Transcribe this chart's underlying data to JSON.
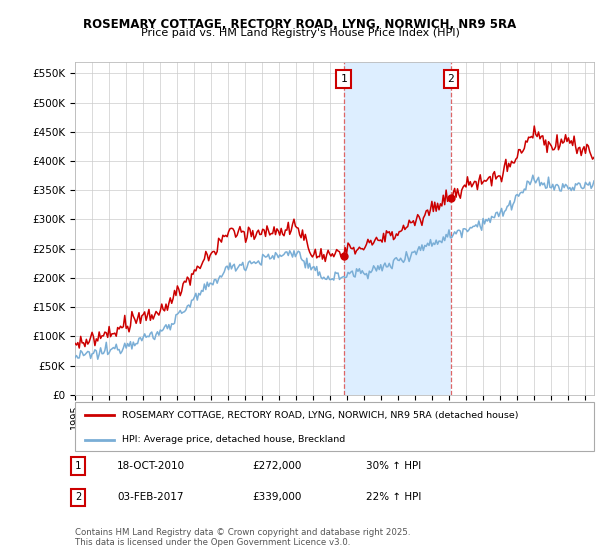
{
  "title": "ROSEMARY COTTAGE, RECTORY ROAD, LYNG, NORWICH, NR9 5RA",
  "subtitle": "Price paid vs. HM Land Registry's House Price Index (HPI)",
  "ylim": [
    0,
    570000
  ],
  "xlim_start": 1995.0,
  "xlim_end": 2025.5,
  "sale1_x": 2010.79,
  "sale1_y": 272000,
  "sale2_x": 2017.09,
  "sale2_y": 339000,
  "legend_red": "ROSEMARY COTTAGE, RECTORY ROAD, LYNG, NORWICH, NR9 5RA (detached house)",
  "legend_blue": "HPI: Average price, detached house, Breckland",
  "red_color": "#cc0000",
  "blue_color": "#7aaed6",
  "shade_color": "#ddeeff",
  "grid_color": "#cccccc",
  "vline_color": "#dd6666",
  "bg_color": "#ffffff",
  "yticks": [
    0,
    50000,
    100000,
    150000,
    200000,
    250000,
    300000,
    350000,
    400000,
    450000,
    500000,
    550000
  ],
  "ytick_labels": [
    "£0",
    "£50K",
    "£100K",
    "£150K",
    "£200K",
    "£250K",
    "£300K",
    "£350K",
    "£400K",
    "£450K",
    "£500K",
    "£550K"
  ],
  "footnote": "Contains HM Land Registry data © Crown copyright and database right 2025.\nThis data is licensed under the Open Government Licence v3.0."
}
